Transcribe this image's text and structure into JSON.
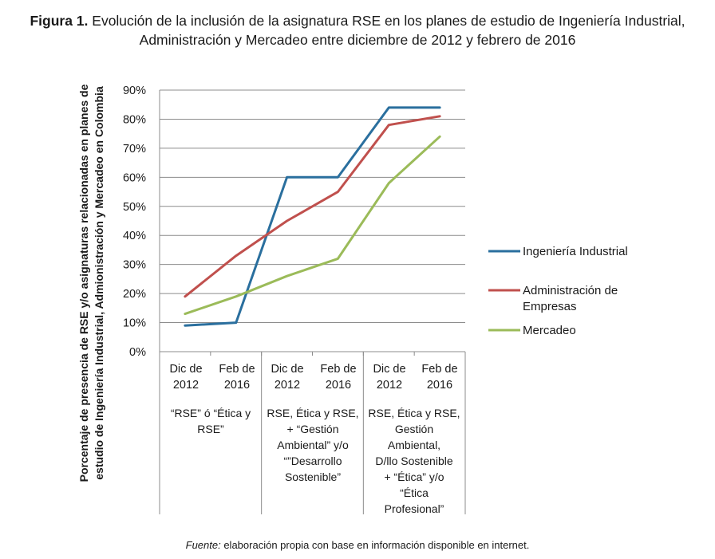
{
  "caption": {
    "label": "Figura 1.",
    "line1": " Evolución de la inclusión de la asignatura RSE en los planes de estudio de Ingeniería Industrial,",
    "line2": "Administración y Mercadeo entre diciembre de 2012 y febrero de 2016"
  },
  "source": {
    "label": "Fuente:",
    "text": " elaboración propia con base en información disponible en internet."
  },
  "chart_data": {
    "type": "line",
    "ylabel_line1": "Porcentaje de presencia de RSE y/o asignaturas relacionadas en planes de",
    "ylabel_line2": "estudio de Ingeniería Industrial, Admionistración y Mercadeo en Colombia",
    "yticks": [
      "0%",
      "10%",
      "20%",
      "30%",
      "40%",
      "50%",
      "60%",
      "70%",
      "80%",
      "90%"
    ],
    "ylim": [
      0,
      90
    ],
    "grid": true,
    "legend_position": "right",
    "categories": [
      {
        "l1": "Dic de",
        "l2": "2012"
      },
      {
        "l1": "Feb de",
        "l2": "2016"
      },
      {
        "l1": "Dic de",
        "l2": "2012"
      },
      {
        "l1": "Feb de",
        "l2": "2016"
      },
      {
        "l1": "Dic de",
        "l2": "2012"
      },
      {
        "l1": "Feb de",
        "l2": "2016"
      }
    ],
    "groups": [
      {
        "lines": [
          "“RSE” ó “Ética y",
          "RSE”"
        ]
      },
      {
        "lines": [
          "RSE, Ética y RSE,",
          "+ “Gestión",
          "Ambiental” y/o",
          "“”Desarrollo",
          "Sostenible”"
        ]
      },
      {
        "lines": [
          "RSE, Ética y RSE,",
          "Gestión",
          "Ambiental,",
          "D/llo Sostenible",
          "+ “Ética” y/o",
          "“Ética",
          "Profesional”"
        ]
      }
    ],
    "series": [
      {
        "name": "Ingeniería Industrial",
        "color": "#2a6f9e",
        "values": [
          9,
          10,
          60,
          60,
          84,
          84
        ]
      },
      {
        "name_l1": "Administración de",
        "name_l2": "Empresas",
        "color": "#c0504d",
        "values": [
          19,
          33,
          45,
          55,
          78,
          81
        ]
      },
      {
        "name": "Mercadeo",
        "color": "#9bbb59",
        "values": [
          13,
          19,
          26,
          32,
          58,
          74
        ]
      }
    ]
  }
}
